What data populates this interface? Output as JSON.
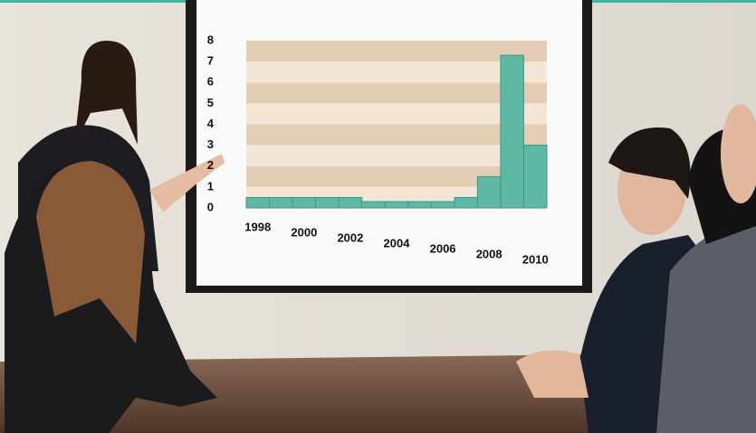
{
  "chart_data": {
    "type": "bar",
    "categories": [
      "1998",
      null,
      "2000",
      null,
      "2002",
      null,
      "2004",
      null,
      "2006",
      null,
      "2008",
      null,
      "2010"
    ],
    "values": [
      0.5,
      0.5,
      0.5,
      0.5,
      0.5,
      0.3,
      0.3,
      0.3,
      0.3,
      0.5,
      1.5,
      7.3,
      3
    ],
    "color": "#5fb8a4",
    "ylim": [
      0,
      8
    ],
    "yticks": [
      0,
      1,
      2,
      3,
      4,
      5,
      6,
      7,
      8
    ],
    "grid": true
  }
}
